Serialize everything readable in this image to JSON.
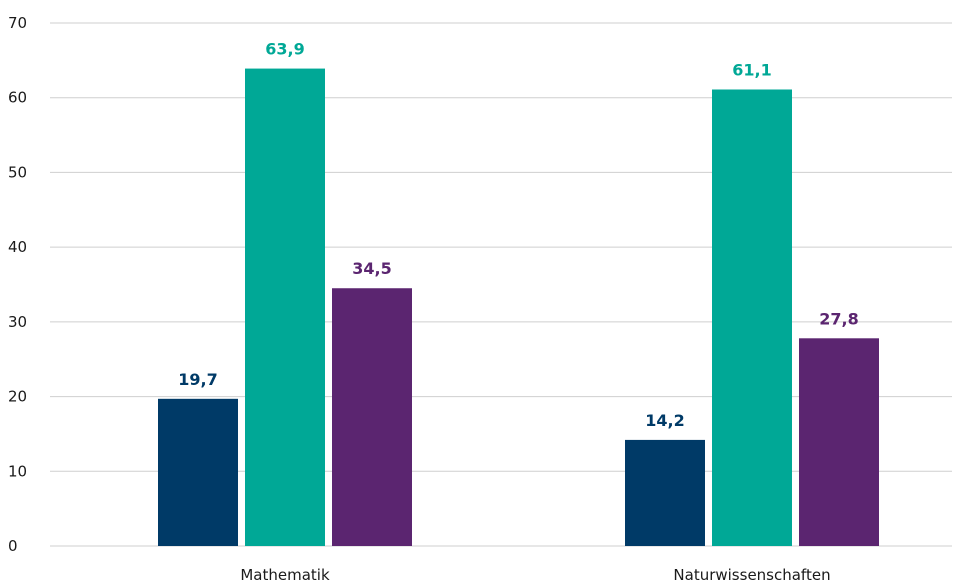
{
  "chart_data": {
    "type": "bar",
    "title": "",
    "xlabel": "",
    "ylabel": "",
    "categories": [
      "Mathematik",
      "Naturwissenschaften"
    ],
    "series": [
      {
        "values": [
          19.7,
          14.2
        ],
        "labels": [
          "19,7",
          "14,2"
        ],
        "color": "#003a67"
      },
      {
        "values": [
          63.9,
          61.1
        ],
        "labels": [
          "63,9",
          "61,1"
        ],
        "color": "#00a896"
      },
      {
        "values": [
          34.5,
          27.8
        ],
        "labels": [
          "34,5",
          "27,8"
        ],
        "color": "#5b2570"
      }
    ],
    "ylim": [
      0,
      70
    ],
    "yticks": [
      "0",
      "10",
      "20",
      "30",
      "40",
      "50",
      "60",
      "70"
    ],
    "grid": true,
    "legend": "none"
  }
}
